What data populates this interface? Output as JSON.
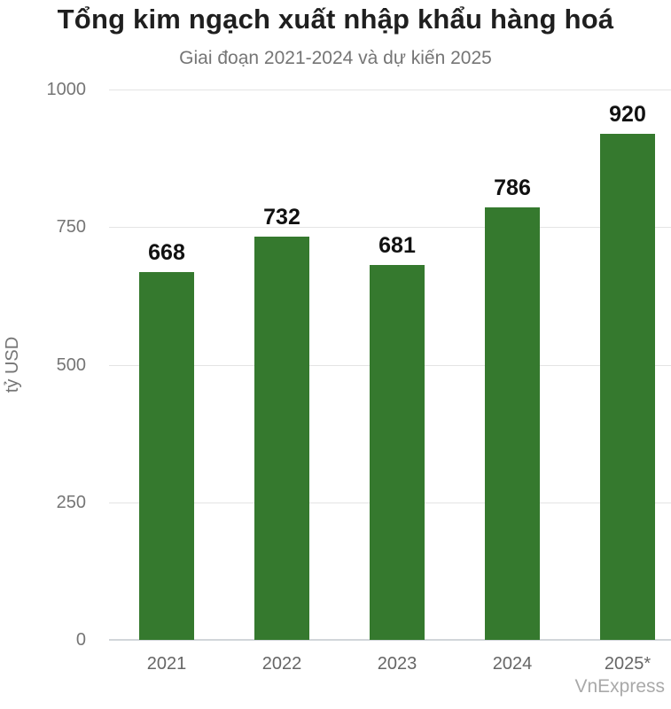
{
  "chart_data": {
    "type": "bar",
    "title": "Tổng kim ngạch xuất nhập khẩu hàng hoá",
    "subtitle": "Giai đoạn 2021-2024 và dự kiến 2025",
    "categories": [
      "2021",
      "2022",
      "2023",
      "2024",
      "2025*"
    ],
    "values": [
      668,
      732,
      681,
      786,
      920
    ],
    "xlabel": "",
    "ylabel": "tỷ USD",
    "yticks": [
      0,
      250,
      500,
      750,
      1000
    ],
    "ylim": [
      0,
      1000
    ],
    "grid": true,
    "legend": "none",
    "bar_color": "#35792e",
    "value_label_color": "#111111",
    "gridline_color": "#e4e4e4"
  },
  "watermark": "VnExpress"
}
